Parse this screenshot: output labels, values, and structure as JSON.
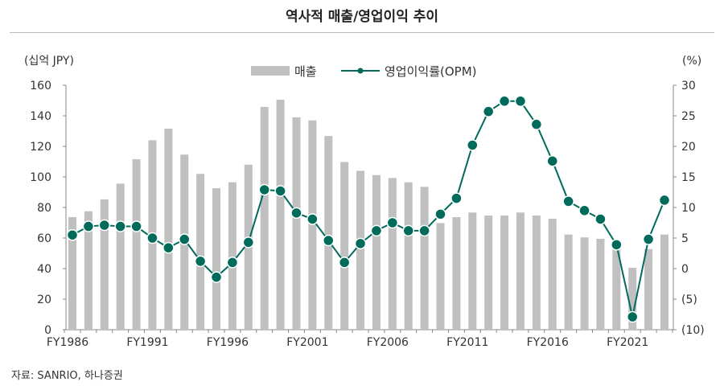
{
  "chart_data": {
    "type": "bar",
    "title": "역사적 매출/영업이익 추이",
    "ylabel": "(십억 JPY)",
    "y2label": "(%)",
    "ylim": [
      0,
      160
    ],
    "y2lim": [
      -10,
      30
    ],
    "yticks": [
      "0",
      "20",
      "40",
      "60",
      "80",
      "100",
      "120",
      "140",
      "160"
    ],
    "y2ticks": [
      "(10)",
      "(5)",
      "0",
      "5",
      "10",
      "15",
      "20",
      "25",
      "30"
    ],
    "x": [
      "FY1986",
      "FY1987",
      "FY1988",
      "FY1989",
      "FY1990",
      "FY1991",
      "FY1992",
      "FY1993",
      "FY1994",
      "FY1995",
      "FY1996",
      "FY1997",
      "FY1998",
      "FY1999",
      "FY2000",
      "FY2001",
      "FY2002",
      "FY2003",
      "FY2004",
      "FY2005",
      "FY2006",
      "FY2007",
      "FY2008",
      "FY2009",
      "FY2010",
      "FY2011",
      "FY2012",
      "FY2013",
      "FY2014",
      "FY2015",
      "FY2016",
      "FY2017",
      "FY2018",
      "FY2019",
      "FY2020",
      "FY2021",
      "FY2022",
      "FY2023"
    ],
    "xtick_labels": [
      "FY1986",
      "FY1991",
      "FY1996",
      "FY2001",
      "FY2006",
      "FY2011",
      "FY2016",
      "FY2021"
    ],
    "legend_position": "top-center",
    "series": [
      {
        "name": "매출",
        "type": "bar",
        "axis": "left",
        "color": "#c0c0c0",
        "values": [
          73.7,
          77.5,
          85.3,
          95.6,
          111.6,
          124.0,
          131.6,
          114.6,
          102.0,
          92.6,
          96.5,
          108.0,
          145.8,
          150.5,
          139.0,
          137.0,
          126.8,
          109.8,
          104.0,
          101.2,
          99.3,
          96.5,
          93.5,
          69.8,
          73.7,
          76.7,
          74.7,
          74.7,
          76.7,
          74.7,
          72.6,
          62.3,
          60.4,
          59.5,
          53.0,
          40.5,
          52.8,
          62.3
        ]
      },
      {
        "name": "영업이익률(OPM)",
        "type": "line",
        "axis": "right",
        "color": "#006b5a",
        "values": [
          5.5,
          6.9,
          7.1,
          6.9,
          6.9,
          5.0,
          3.4,
          4.8,
          1.2,
          -1.4,
          1.0,
          4.3,
          12.9,
          12.7,
          9.1,
          8.1,
          4.6,
          1.0,
          4.1,
          6.2,
          7.5,
          6.2,
          6.2,
          8.9,
          11.5,
          20.2,
          25.7,
          27.4,
          27.4,
          23.6,
          17.6,
          11.0,
          9.5,
          8.1,
          3.9,
          -7.9,
          4.8,
          11.2
        ]
      }
    ]
  },
  "source": "자료: SANRIO, 하나증권"
}
